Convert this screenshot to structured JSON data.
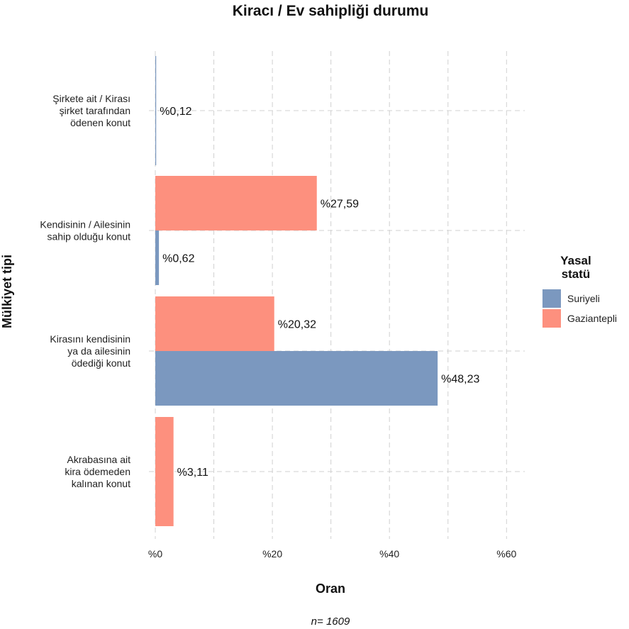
{
  "chart_data": {
    "type": "bar",
    "orientation": "horizontal",
    "title": "Kiracı / Ev sahipliği durumu",
    "xlabel": "Oran",
    "ylabel": "Mülkiyet tipi",
    "caption": "n= 1609",
    "xlim": [
      0,
      63
    ],
    "x_ticks": [
      0,
      20,
      40,
      60
    ],
    "x_tick_labels": [
      "%0",
      "%20",
      "%40",
      "%60"
    ],
    "grid": true,
    "legend": {
      "title_lines": [
        "Yasal",
        "statü"
      ],
      "position": "right"
    },
    "categories": [
      {
        "lines": [
          "Şirkete ait / Kirası",
          "şirket tarafından",
          "ödenen konut"
        ]
      },
      {
        "lines": [
          "Kendisinin / Ailesinin",
          "sahip olduğu konut"
        ]
      },
      {
        "lines": [
          "Kirasını kendisinin",
          "ya da ailesinin",
          "ödediği konut"
        ]
      },
      {
        "lines": [
          "Akrabasına ait",
          "kira ödemeden",
          "kalınan konut"
        ]
      }
    ],
    "series": [
      {
        "name": "Suriyeli",
        "color": "#7b98bf",
        "values": [
          0.12,
          0.62,
          48.23,
          null
        ],
        "labels": [
          "%0,12",
          "%0,62",
          "%48,23",
          null
        ]
      },
      {
        "name": "Gaziantepli",
        "color": "#fd907e",
        "values": [
          null,
          27.59,
          20.32,
          3.11
        ],
        "labels": [
          null,
          "%27,59",
          "%20,32",
          "%3,11"
        ]
      }
    ]
  }
}
